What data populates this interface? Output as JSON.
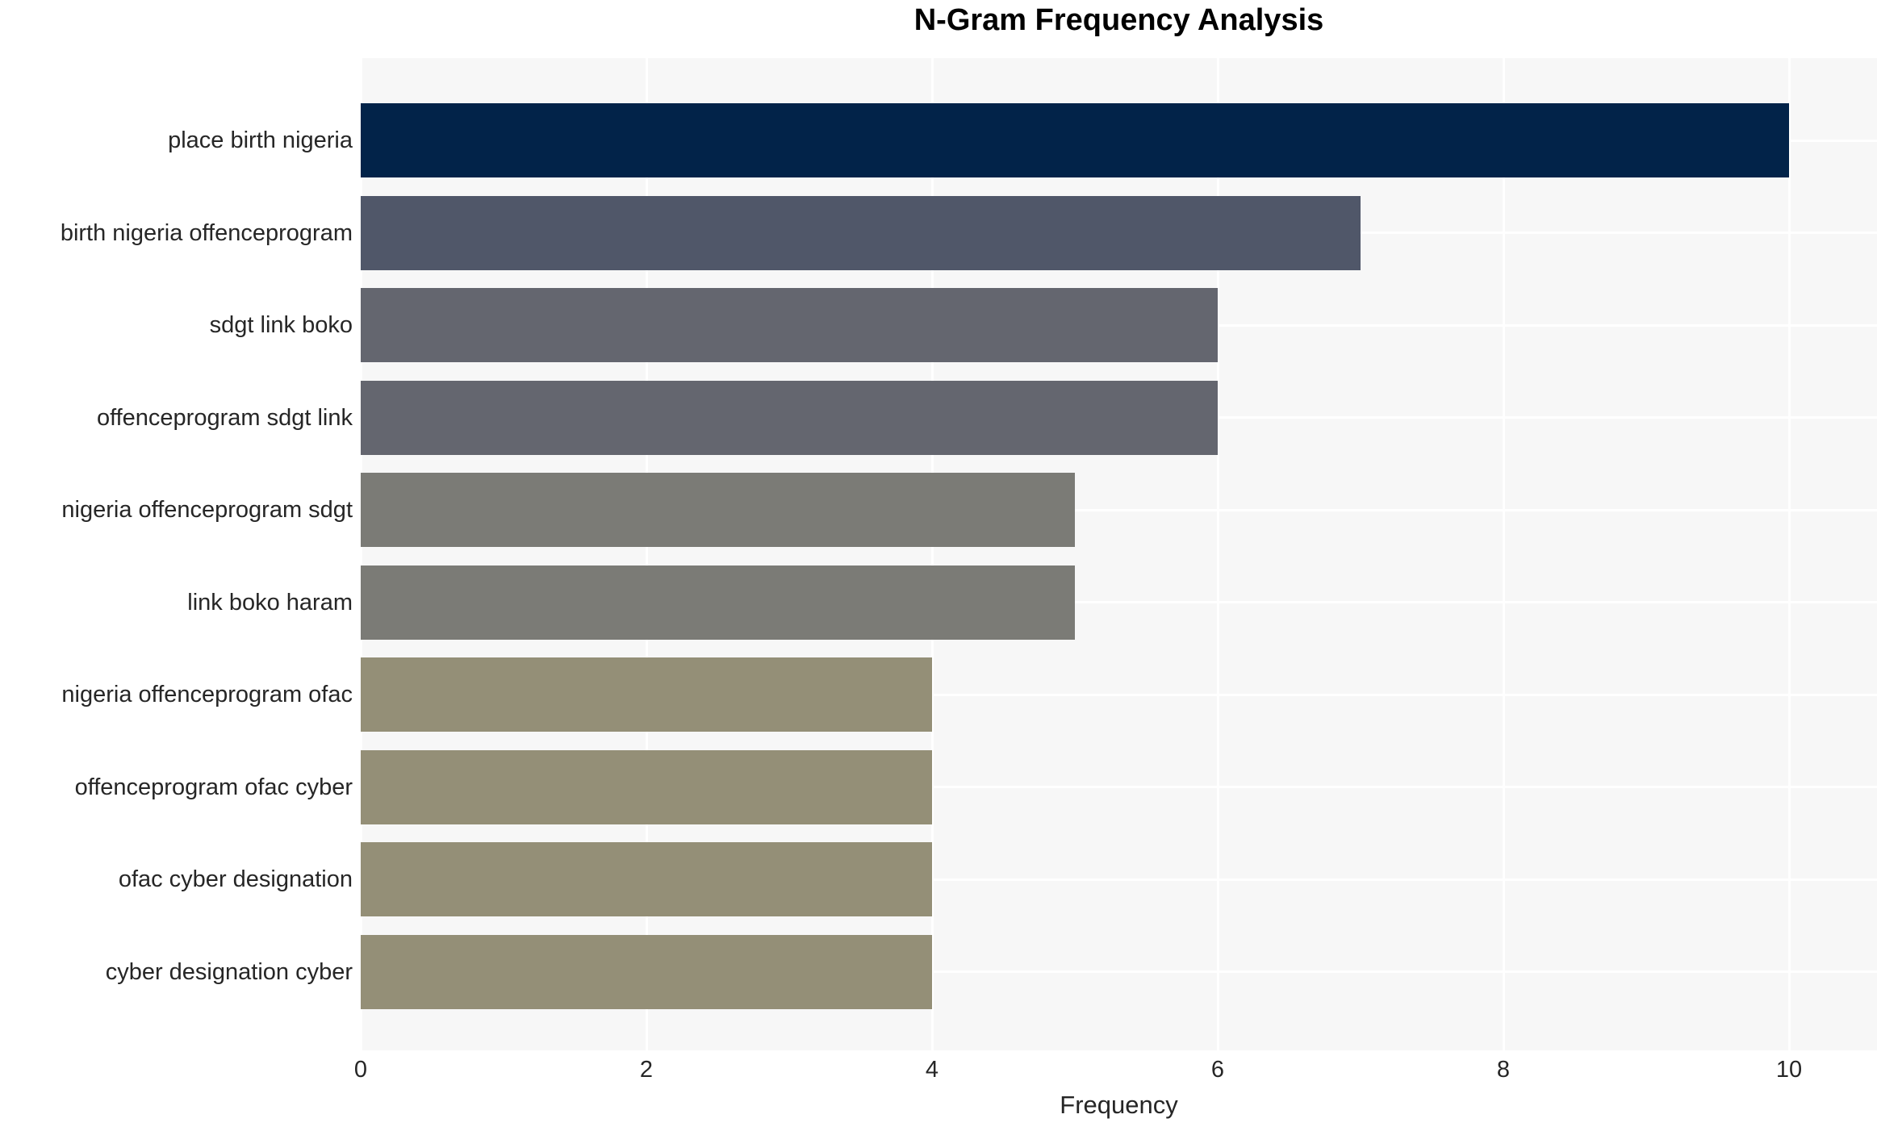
{
  "chart_data": {
    "type": "bar",
    "orientation": "horizontal",
    "title": "N-Gram Frequency Analysis",
    "xlabel": "Frequency",
    "ylabel": "",
    "categories": [
      "place birth nigeria",
      "birth nigeria offenceprogram",
      "sdgt link boko",
      "offenceprogram sdgt link",
      "nigeria offenceprogram sdgt",
      "link boko haram",
      "nigeria offenceprogram ofac",
      "offenceprogram ofac cyber",
      "ofac cyber designation",
      "cyber designation cyber"
    ],
    "values": [
      10,
      7,
      6,
      6,
      5,
      5,
      4,
      4,
      4,
      4
    ],
    "bar_colors": [
      "#022349",
      "#505769",
      "#64666f",
      "#64666f",
      "#7b7b76",
      "#7b7b76",
      "#948f77",
      "#948f77",
      "#948f77",
      "#948f77"
    ],
    "x_ticks": [
      0,
      2,
      4,
      6,
      8,
      10
    ],
    "xlim": [
      0,
      10.6
    ],
    "grid": true,
    "legend": false,
    "plot_bg_color": "#f7f7f7",
    "grid_color": "#ffffff",
    "tick_text_color": "#262626",
    "title_color": "#000000"
  }
}
